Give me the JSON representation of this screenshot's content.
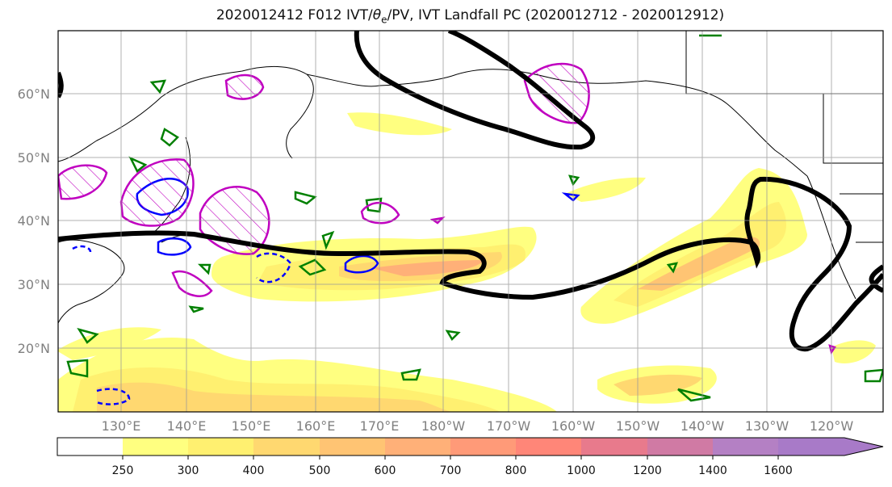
{
  "title": {
    "prefix": "2020012412 F012 IVT/",
    "theta": "θ",
    "theta_sub": "e",
    "suffix": "/PV, IVT Landfall PC (2020012712 - 2020012912)"
  },
  "map": {
    "lat_labels": [
      "60°N",
      "50°N",
      "40°N",
      "30°N",
      "20°N"
    ],
    "lon_labels": [
      "130°E",
      "140°E",
      "150°E",
      "160°E",
      "170°E",
      "180°W",
      "170°W",
      "160°W",
      "150°W",
      "140°W",
      "130°W",
      "120°W"
    ],
    "grid": true,
    "legend_colors": {
      "theta_e": "#008000",
      "pv_positive": "#0000ff",
      "pv_negative_dashed": "#0000ff",
      "landfall_pc": "#c000c0",
      "ivt_composite": "#000000"
    }
  },
  "colorbar": {
    "ticks": [
      "250",
      "300",
      "400",
      "500",
      "600",
      "700",
      "800",
      "1000",
      "1200",
      "1400",
      "1600"
    ],
    "colors": [
      "#ffffff",
      "#ffff80",
      "#fff070",
      "#ffd870",
      "#ffc473",
      "#ffb078",
      "#ff9a78",
      "#ff8678",
      "#e87a8c",
      "#d07aa4",
      "#b480c4"
    ],
    "extend": "max"
  }
}
